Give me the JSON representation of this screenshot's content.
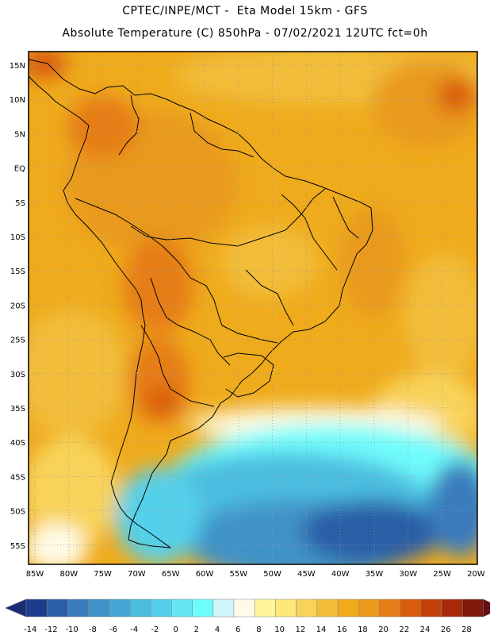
{
  "header": {
    "line1": "CPTEC/INPE/MCT -  Eta Model 15km - GFS",
    "line2": "Absolute Temperature (C) 850hPa - 07/02/2021 12UTC fct=0h"
  },
  "map": {
    "lat_labels": [
      "15N",
      "10N",
      "5N",
      "EQ",
      "5S",
      "10S",
      "15S",
      "20S",
      "25S",
      "30S",
      "35S",
      "40S",
      "45S",
      "50S",
      "55S"
    ],
    "lon_labels": [
      "85W",
      "80W",
      "75W",
      "70W",
      "65W",
      "60W",
      "55W",
      "50W",
      "45W",
      "40W",
      "35W",
      "30W",
      "25W",
      "20W"
    ],
    "grid": "dotted",
    "field": "Absolute Temperature (C) 850hPa"
  },
  "colorbar": {
    "labels": [
      "-14",
      "-12",
      "-10",
      "-8",
      "-6",
      "-4",
      "-2",
      "0",
      "2",
      "4",
      "6",
      "8",
      "10",
      "12",
      "14",
      "16",
      "18",
      "20",
      "22",
      "24",
      "26",
      "28"
    ],
    "colors": [
      "#1e3c8c",
      "#2a5ea6",
      "#3a7cbd",
      "#3f93c8",
      "#45a8d4",
      "#4bbde0",
      "#55d0ea",
      "#66e6f2",
      "#6ffcfc",
      "#cdf6fb",
      "#fffbe6",
      "#fff59a",
      "#fde87a",
      "#f8d35a",
      "#f2bd3a",
      "#efab1c",
      "#e99a1a",
      "#e67d16",
      "#d95c0c",
      "#c2410a",
      "#a62a09",
      "#7e1a07"
    ],
    "arrow_left": "#1d2a78",
    "arrow_right": "#6a0a14"
  }
}
